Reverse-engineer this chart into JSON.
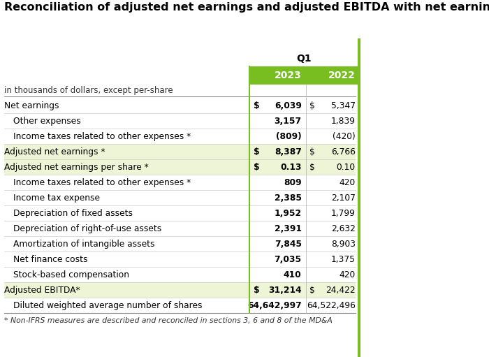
{
  "title": "Reconciliation of adjusted net earnings and adjusted EBITDA with net earnings",
  "subtitle": "in thousands of dollars, except per-share",
  "q1_label": "Q1",
  "col_2023": "2023",
  "col_2022": "2022",
  "header_bg": "#78BE20",
  "header_text_color": "#ffffff",
  "highlight_bg": "#edf5d6",
  "green_border": "#78BE20",
  "rows": [
    {
      "label": "Net earnings",
      "indent": false,
      "dollar_2023": true,
      "val_2023": "6,039",
      "dollar_2022": true,
      "val_2022": "5,347",
      "highlight": false,
      "bold_val_2023": true,
      "bold_val_2022": false
    },
    {
      "label": "Other expenses",
      "indent": true,
      "dollar_2023": false,
      "val_2023": "3,157",
      "dollar_2022": false,
      "val_2022": "1,839",
      "highlight": false,
      "bold_val_2023": true,
      "bold_val_2022": false
    },
    {
      "label": "Income taxes related to other expenses *",
      "indent": true,
      "dollar_2023": false,
      "val_2023": "(809)",
      "dollar_2022": false,
      "val_2022": "(420)",
      "highlight": false,
      "bold_val_2023": true,
      "bold_val_2022": false
    },
    {
      "label": "Adjusted net earnings *",
      "indent": false,
      "dollar_2023": true,
      "val_2023": "8,387",
      "dollar_2022": true,
      "val_2022": "6,766",
      "highlight": true,
      "bold_val_2023": true,
      "bold_val_2022": false
    },
    {
      "label": "Adjusted net earnings per share *",
      "indent": false,
      "dollar_2023": true,
      "val_2023": "0.13",
      "dollar_2022": true,
      "val_2022": "0.10",
      "highlight": true,
      "bold_val_2023": true,
      "bold_val_2022": false
    },
    {
      "label": "Income taxes related to other expenses *",
      "indent": true,
      "dollar_2023": false,
      "val_2023": "809",
      "dollar_2022": false,
      "val_2022": "420",
      "highlight": false,
      "bold_val_2023": true,
      "bold_val_2022": false
    },
    {
      "label": "Income tax expense",
      "indent": true,
      "dollar_2023": false,
      "val_2023": "2,385",
      "dollar_2022": false,
      "val_2022": "2,107",
      "highlight": false,
      "bold_val_2023": true,
      "bold_val_2022": false
    },
    {
      "label": "Depreciation of fixed assets",
      "indent": true,
      "dollar_2023": false,
      "val_2023": "1,952",
      "dollar_2022": false,
      "val_2022": "1,799",
      "highlight": false,
      "bold_val_2023": true,
      "bold_val_2022": false
    },
    {
      "label": "Depreciation of right-of-use assets",
      "indent": true,
      "dollar_2023": false,
      "val_2023": "2,391",
      "dollar_2022": false,
      "val_2022": "2,632",
      "highlight": false,
      "bold_val_2023": true,
      "bold_val_2022": false
    },
    {
      "label": "Amortization of intangible assets",
      "indent": true,
      "dollar_2023": false,
      "val_2023": "7,845",
      "dollar_2022": false,
      "val_2022": "8,903",
      "highlight": false,
      "bold_val_2023": true,
      "bold_val_2022": false
    },
    {
      "label": "Net finance costs",
      "indent": true,
      "dollar_2023": false,
      "val_2023": "7,035",
      "dollar_2022": false,
      "val_2022": "1,375",
      "highlight": false,
      "bold_val_2023": true,
      "bold_val_2022": false
    },
    {
      "label": "Stock-based compensation",
      "indent": true,
      "dollar_2023": false,
      "val_2023": "410",
      "dollar_2022": false,
      "val_2022": "420",
      "highlight": false,
      "bold_val_2023": true,
      "bold_val_2022": false
    },
    {
      "label": "Adjusted EBITDA*",
      "indent": false,
      "dollar_2023": true,
      "val_2023": "31,214",
      "dollar_2022": true,
      "val_2022": "24,422",
      "highlight": true,
      "bold_val_2023": true,
      "bold_val_2022": false
    },
    {
      "label": "Diluted weighted average number of shares",
      "indent": true,
      "dollar_2023": false,
      "val_2023": "64,642,997",
      "dollar_2022": false,
      "val_2022": "64,522,496",
      "highlight": false,
      "bold_val_2023": true,
      "bold_val_2022": false
    }
  ],
  "footnote": "* Non-IFRS measures are described and reconciled in sections 3, 6 and 8 of the MD&A"
}
